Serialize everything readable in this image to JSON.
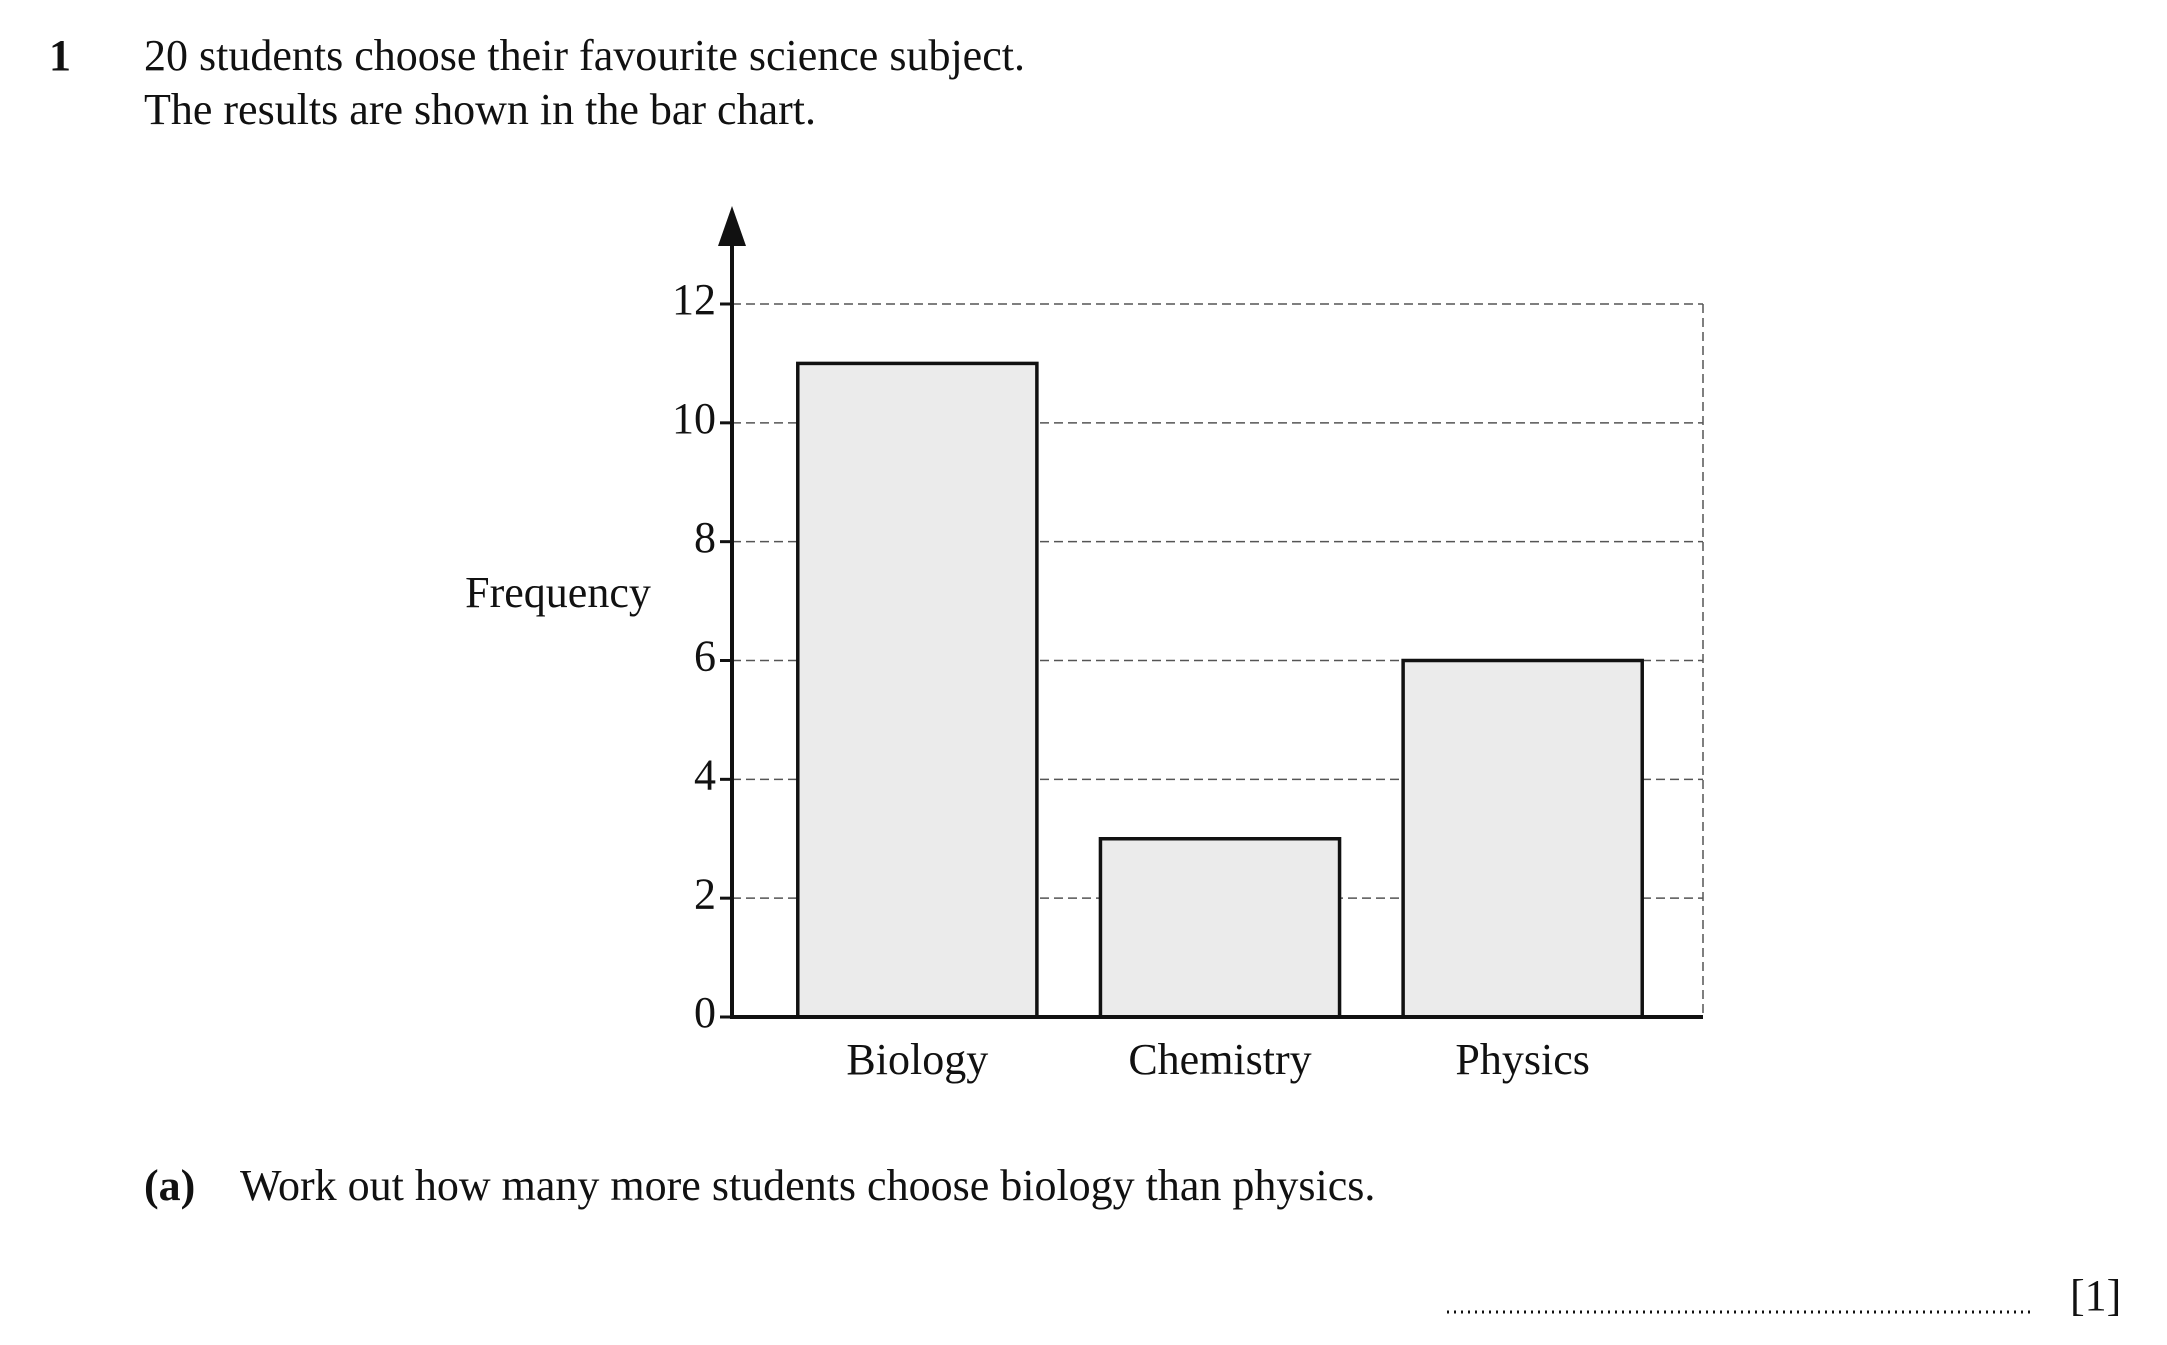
{
  "question_number": "1",
  "intro": [
    "20 students choose their favourite science subject.",
    "The results are shown in the bar chart."
  ],
  "part_a": {
    "label": "(a)",
    "text": "Work out how many more students choose biology than physics.",
    "marks": "[1]"
  },
  "chart_data": {
    "type": "bar",
    "ylabel": "Frequency",
    "categories": [
      "Biology",
      "Chemistry",
      "Physics"
    ],
    "values": [
      11,
      3,
      6
    ],
    "color": "#ebebeb",
    "ylim": [
      0,
      12
    ],
    "yticks": [
      0,
      2,
      4,
      6,
      8,
      10,
      12
    ],
    "grid": true
  }
}
